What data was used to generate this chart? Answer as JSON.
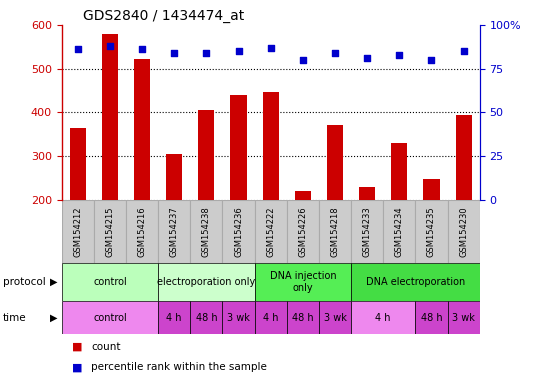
{
  "title": "GDS2840 / 1434474_at",
  "samples": [
    "GSM154212",
    "GSM154215",
    "GSM154216",
    "GSM154237",
    "GSM154238",
    "GSM154236",
    "GSM154222",
    "GSM154226",
    "GSM154218",
    "GSM154233",
    "GSM154234",
    "GSM154235",
    "GSM154230"
  ],
  "counts": [
    365,
    580,
    522,
    305,
    405,
    440,
    447,
    220,
    372,
    228,
    330,
    248,
    393
  ],
  "percentile_ranks": [
    86,
    88,
    86,
    84,
    84,
    85,
    87,
    80,
    84,
    81,
    83,
    80,
    85
  ],
  "ylim_left": [
    200,
    600
  ],
  "ylim_right": [
    0,
    100
  ],
  "yticks_left": [
    200,
    300,
    400,
    500,
    600
  ],
  "yticks_right": [
    0,
    25,
    50,
    75,
    100
  ],
  "bar_color": "#cc0000",
  "dot_color": "#0000cc",
  "bar_width": 0.5,
  "protocol_groups": [
    {
      "label": "control",
      "start": 0,
      "end": 3,
      "color": "#bbffbb"
    },
    {
      "label": "electroporation only",
      "start": 3,
      "end": 6,
      "color": "#ccffcc"
    },
    {
      "label": "DNA injection\nonly",
      "start": 6,
      "end": 9,
      "color": "#55ee55"
    },
    {
      "label": "DNA electroporation",
      "start": 9,
      "end": 13,
      "color": "#44dd44"
    }
  ],
  "time_groups": [
    {
      "label": "control",
      "start": 0,
      "end": 3,
      "color": "#ee88ee"
    },
    {
      "label": "4 h",
      "start": 3,
      "end": 4,
      "color": "#cc44cc"
    },
    {
      "label": "48 h",
      "start": 4,
      "end": 5,
      "color": "#cc44cc"
    },
    {
      "label": "3 wk",
      "start": 5,
      "end": 6,
      "color": "#cc44cc"
    },
    {
      "label": "4 h",
      "start": 6,
      "end": 7,
      "color": "#cc44cc"
    },
    {
      "label": "48 h",
      "start": 7,
      "end": 8,
      "color": "#cc44cc"
    },
    {
      "label": "3 wk",
      "start": 8,
      "end": 9,
      "color": "#cc44cc"
    },
    {
      "label": "4 h",
      "start": 9,
      "end": 11,
      "color": "#ee88ee"
    },
    {
      "label": "48 h",
      "start": 11,
      "end": 12,
      "color": "#cc44cc"
    },
    {
      "label": "3 wk",
      "start": 12,
      "end": 13,
      "color": "#cc44cc"
    }
  ],
  "left_axis_color": "#cc0000",
  "right_axis_color": "#0000cc",
  "bg_color": "#ffffff",
  "gsm_bg_color": "#cccccc",
  "gsm_border_color": "#aaaaaa"
}
